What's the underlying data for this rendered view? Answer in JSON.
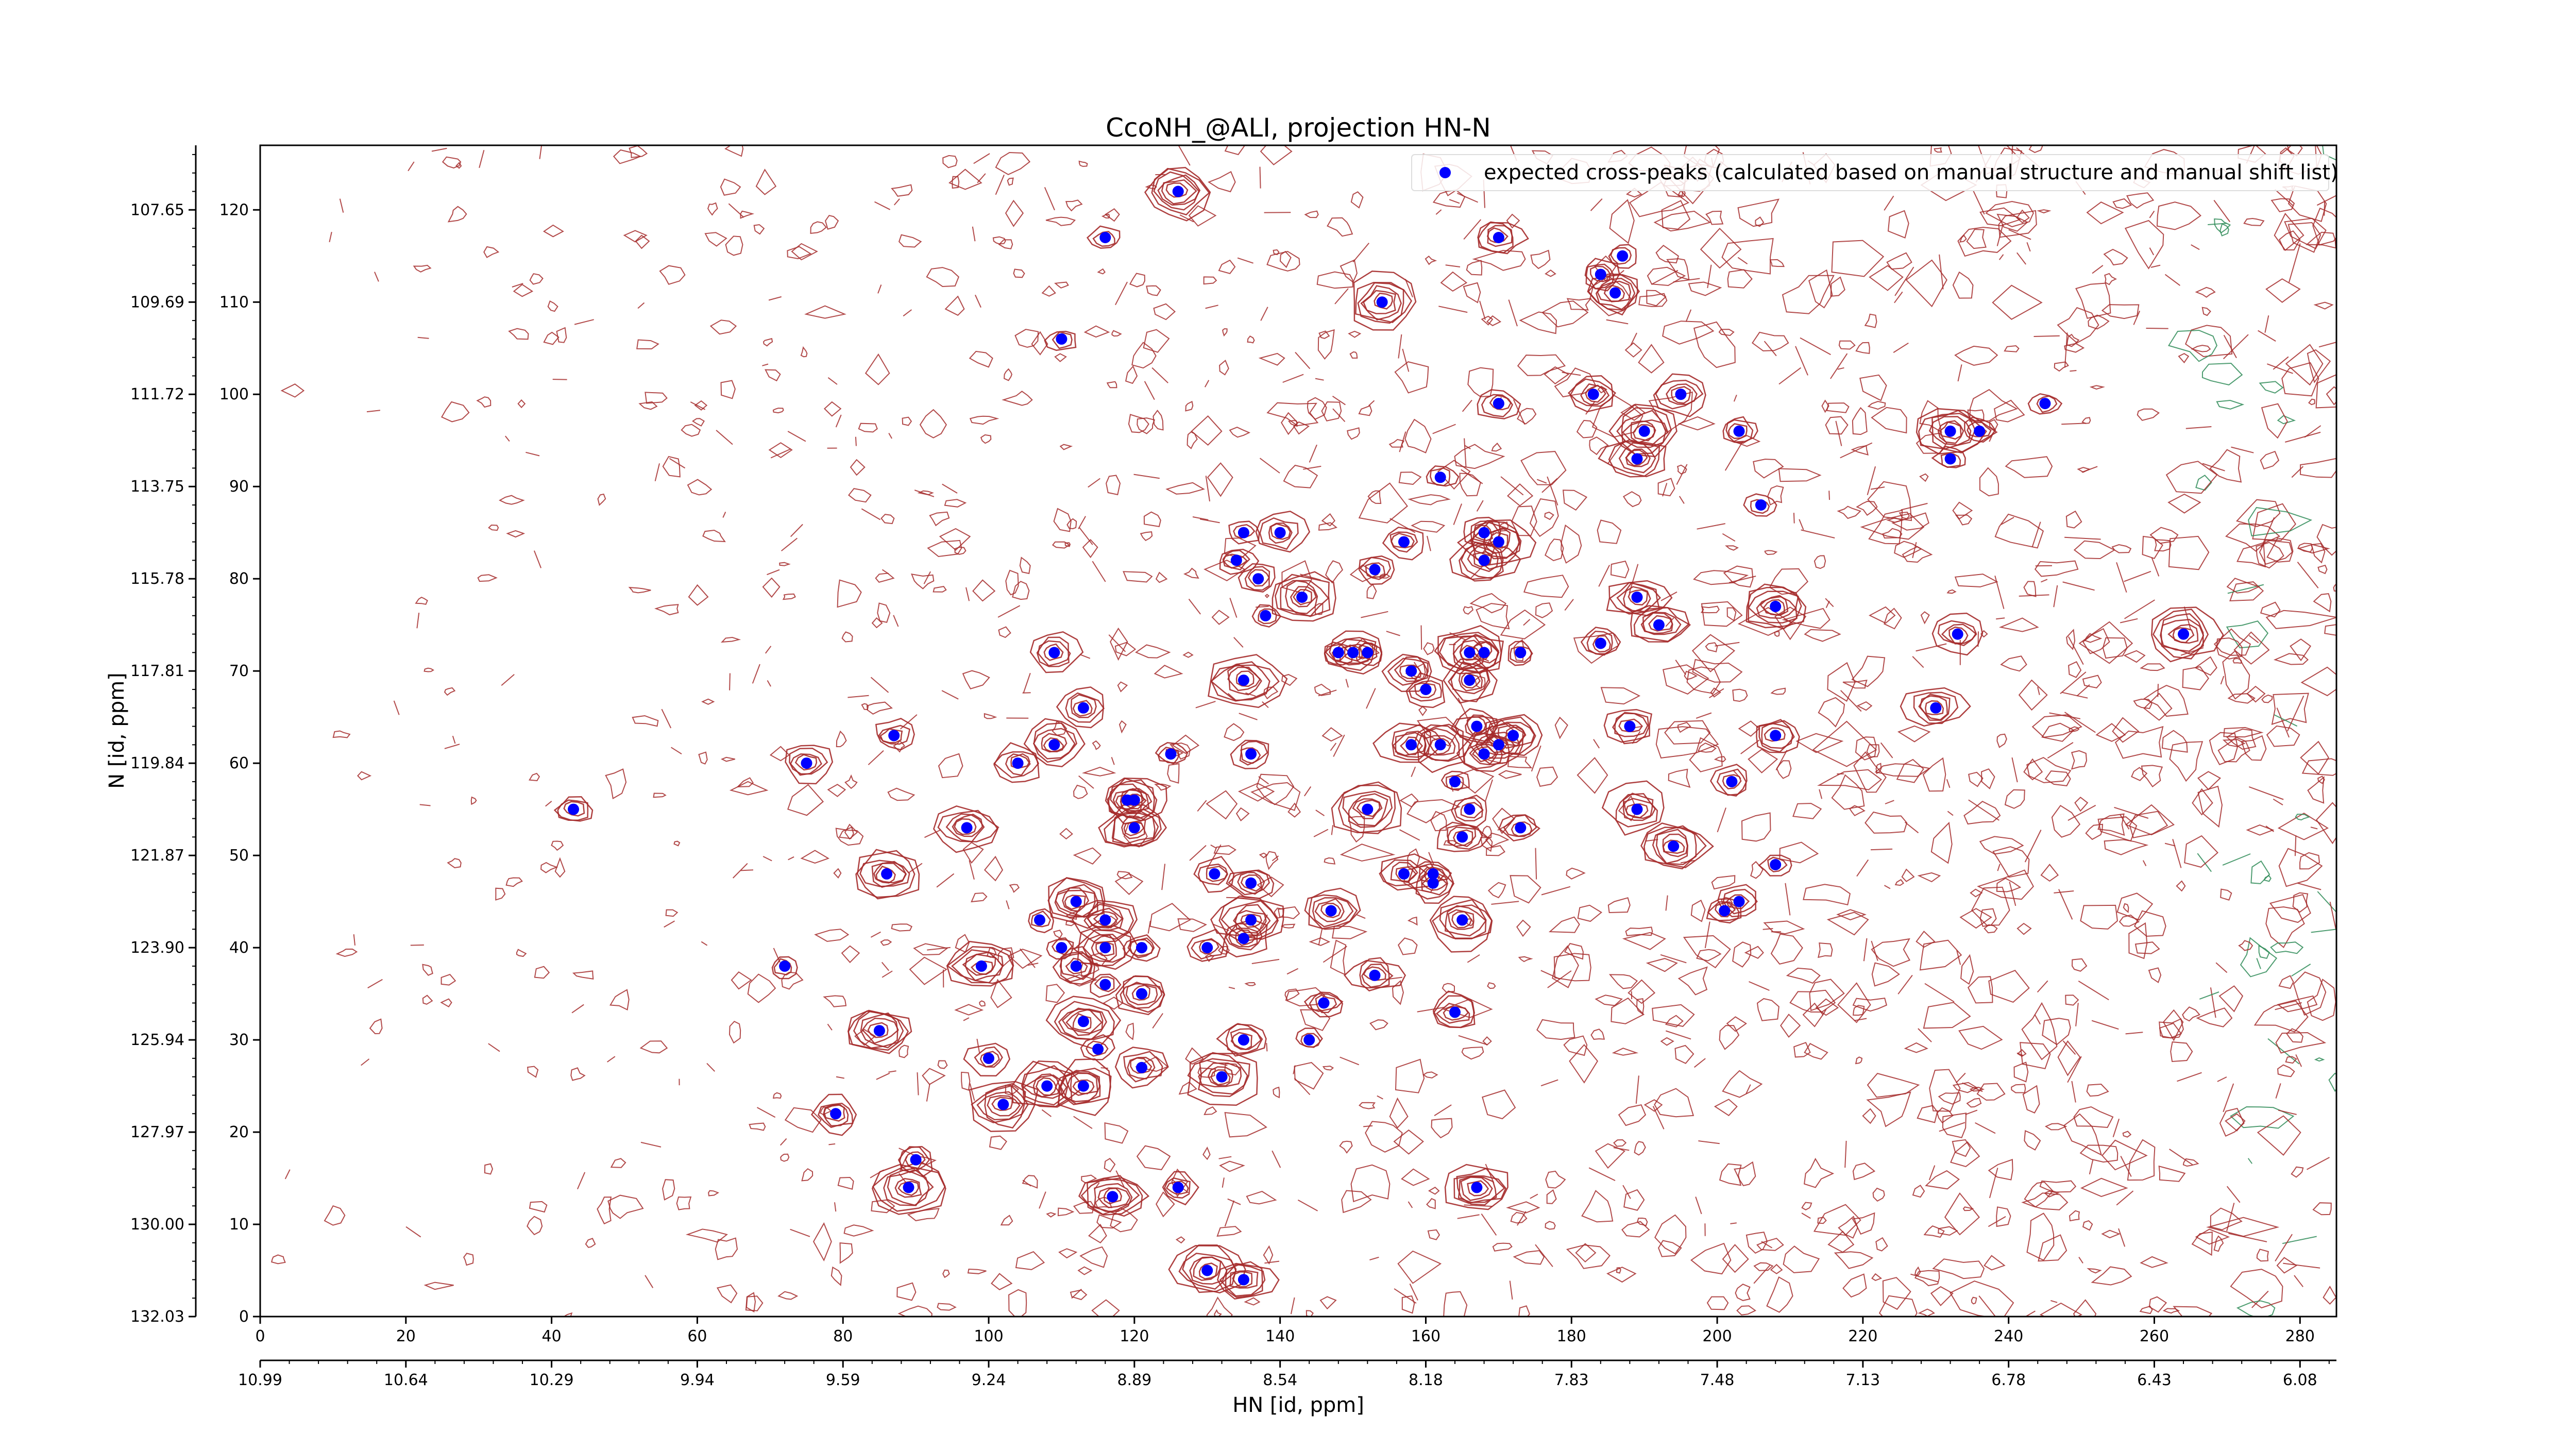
{
  "chart_data": {
    "type": "scatter",
    "title": "CcoNH_@ALI, projection HN-N",
    "xlabel": "HN [id, ppm]",
    "ylabel": "N [id, ppm]",
    "x_index_range": [
      0,
      285
    ],
    "y_index_range": [
      0,
      127
    ],
    "x_index_ticks": [
      "0",
      "20",
      "40",
      "60",
      "80",
      "100",
      "120",
      "140",
      "160",
      "180",
      "200",
      "220",
      "240",
      "260",
      "280"
    ],
    "y_index_ticks": [
      "0",
      "10",
      "20",
      "30",
      "40",
      "50",
      "60",
      "70",
      "80",
      "90",
      "100",
      "110",
      "120"
    ],
    "x_ppm_ticks": [
      "10.99",
      "10.64",
      "10.29",
      "9.94",
      "9.59",
      "9.24",
      "8.89",
      "8.54",
      "8.18",
      "7.83",
      "7.48",
      "7.13",
      "6.78",
      "6.43",
      "6.08"
    ],
    "y_ppm_ticks": [
      "132.03",
      "130.00",
      "127.97",
      "125.94",
      "123.90",
      "121.87",
      "119.84",
      "117.81",
      "115.78",
      "113.75",
      "111.72",
      "109.69",
      "107.65"
    ],
    "grid": false,
    "legend": {
      "position": "top-right",
      "entries": [
        "expected cross-peaks (calculated based on manual structure and manual shift list)"
      ]
    },
    "colors": {
      "contour_positive": "#a52a2a",
      "contour_negative": "#2e8b57",
      "peak_marker": "#0000ff"
    },
    "series": [
      {
        "name": "expected cross-peaks (calculated based on manual structure and manual shift list)",
        "points": [
          [
            126,
            122
          ],
          [
            116,
            117
          ],
          [
            170,
            117
          ],
          [
            154,
            110
          ],
          [
            110,
            106
          ],
          [
            184,
            113
          ],
          [
            186,
            111
          ],
          [
            187,
            115
          ],
          [
            170,
            99
          ],
          [
            183,
            100
          ],
          [
            195,
            100
          ],
          [
            203,
            96
          ],
          [
            190,
            96
          ],
          [
            189,
            93
          ],
          [
            162,
            91
          ],
          [
            232,
            96
          ],
          [
            232,
            93
          ],
          [
            236,
            96
          ],
          [
            245,
            99
          ],
          [
            206,
            88
          ],
          [
            140,
            85
          ],
          [
            135,
            85
          ],
          [
            134,
            82
          ],
          [
            157,
            84
          ],
          [
            168,
            85
          ],
          [
            170,
            84
          ],
          [
            168,
            82
          ],
          [
            153,
            81
          ],
          [
            137,
            80
          ],
          [
            143,
            78
          ],
          [
            189,
            78
          ],
          [
            138,
            76
          ],
          [
            208,
            77
          ],
          [
            192,
            75
          ],
          [
            264,
            74
          ],
          [
            233,
            74
          ],
          [
            109,
            72
          ],
          [
            148,
            72
          ],
          [
            150,
            72
          ],
          [
            152,
            72
          ],
          [
            158,
            70
          ],
          [
            166,
            72
          ],
          [
            168,
            72
          ],
          [
            173,
            72
          ],
          [
            184,
            73
          ],
          [
            135,
            69
          ],
          [
            160,
            68
          ],
          [
            166,
            69
          ],
          [
            113,
            66
          ],
          [
            87,
            63
          ],
          [
            167,
            64
          ],
          [
            172,
            63
          ],
          [
            109,
            62
          ],
          [
            158,
            62
          ],
          [
            162,
            62
          ],
          [
            168,
            61
          ],
          [
            170,
            62
          ],
          [
            125,
            61
          ],
          [
            136,
            61
          ],
          [
            75,
            60
          ],
          [
            104,
            60
          ],
          [
            208,
            63
          ],
          [
            230,
            66
          ],
          [
            188,
            64
          ],
          [
            164,
            58
          ],
          [
            202,
            58
          ],
          [
            119,
            56
          ],
          [
            120,
            56
          ],
          [
            43,
            55
          ],
          [
            152,
            55
          ],
          [
            166,
            55
          ],
          [
            189,
            55
          ],
          [
            97,
            53
          ],
          [
            120,
            53
          ],
          [
            173,
            53
          ],
          [
            165,
            52
          ],
          [
            194,
            51
          ],
          [
            86,
            48
          ],
          [
            131,
            48
          ],
          [
            136,
            47
          ],
          [
            157,
            48
          ],
          [
            161,
            48
          ],
          [
            161,
            47
          ],
          [
            208,
            49
          ],
          [
            112,
            45
          ],
          [
            147,
            44
          ],
          [
            165,
            43
          ],
          [
            201,
            44
          ],
          [
            203,
            45
          ],
          [
            107,
            43
          ],
          [
            116,
            43
          ],
          [
            136,
            43
          ],
          [
            116,
            40
          ],
          [
            121,
            40
          ],
          [
            130,
            40
          ],
          [
            135,
            41
          ],
          [
            110,
            40
          ],
          [
            72,
            38
          ],
          [
            99,
            38
          ],
          [
            112,
            38
          ],
          [
            116,
            36
          ],
          [
            121,
            35
          ],
          [
            153,
            37
          ],
          [
            146,
            34
          ],
          [
            164,
            33
          ],
          [
            113,
            32
          ],
          [
            85,
            31
          ],
          [
            135,
            30
          ],
          [
            144,
            30
          ],
          [
            100,
            28
          ],
          [
            115,
            29
          ],
          [
            108,
            25
          ],
          [
            113,
            25
          ],
          [
            121,
            27
          ],
          [
            132,
            26
          ],
          [
            102,
            23
          ],
          [
            79,
            22
          ],
          [
            90,
            17
          ],
          [
            89,
            14
          ],
          [
            126,
            14
          ],
          [
            117,
            13
          ],
          [
            167,
            14
          ],
          [
            130,
            5
          ],
          [
            135,
            4
          ]
        ]
      }
    ]
  }
}
